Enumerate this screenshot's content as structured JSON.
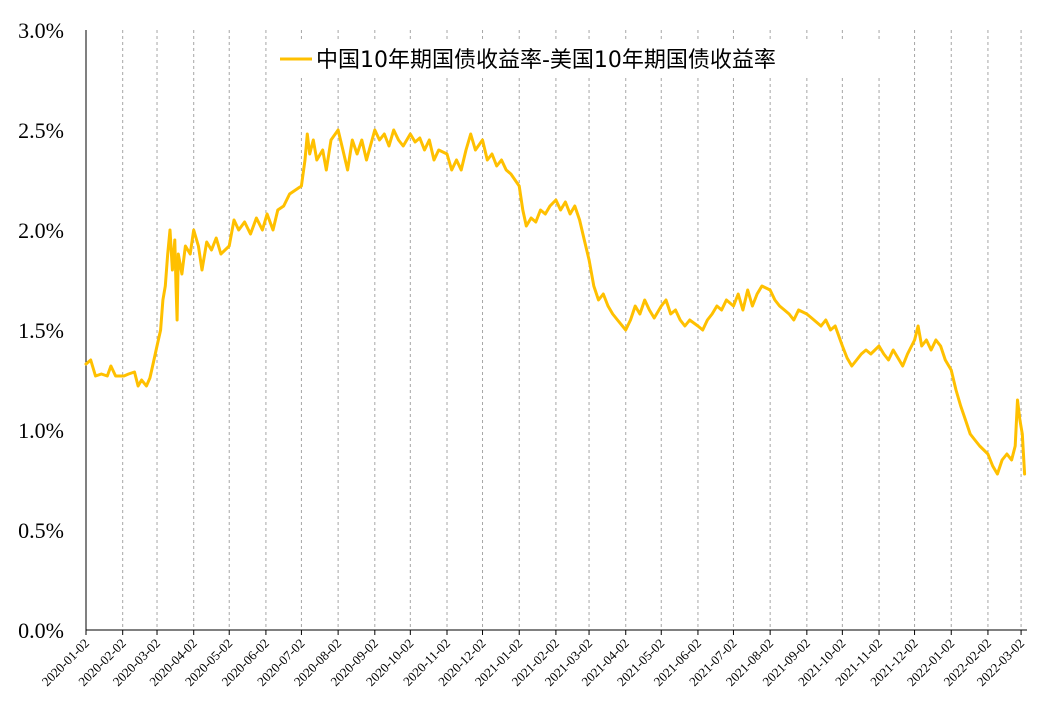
{
  "chart_data": {
    "type": "line",
    "title": "",
    "xlabel": "",
    "ylabel": "",
    "ylim": [
      0,
      3.0
    ],
    "y_unit": "%",
    "grid": "vertical-dashed",
    "legend_position": "top",
    "y_ticks": [
      "0.0%",
      "0.5%",
      "1.0%",
      "1.5%",
      "2.0%",
      "2.5%",
      "3.0%"
    ],
    "x_ticks": [
      "2020-01-02",
      "2020-02-02",
      "2020-03-02",
      "2020-04-02",
      "2020-05-02",
      "2020-06-02",
      "2020-07-02",
      "2020-08-02",
      "2020-09-02",
      "2020-10-02",
      "2020-11-02",
      "2020-12-02",
      "2021-01-02",
      "2021-02-02",
      "2021-03-02",
      "2021-04-02",
      "2021-05-02",
      "2021-06-02",
      "2021-07-02",
      "2021-08-02",
      "2021-09-02",
      "2021-10-02",
      "2021-11-02",
      "2021-12-02",
      "2022-01-02",
      "2022-02-02",
      "2022-03-02"
    ],
    "series": [
      {
        "name": "中国10年期国债收益率-美国10年期国债收益率",
        "color": "#FFC000",
        "points": [
          [
            "2020-01-02",
            1.33
          ],
          [
            "2020-01-06",
            1.35
          ],
          [
            "2020-01-10",
            1.27
          ],
          [
            "2020-01-15",
            1.28
          ],
          [
            "2020-01-20",
            1.27
          ],
          [
            "2020-01-23",
            1.32
          ],
          [
            "2020-01-27",
            1.27
          ],
          [
            "2020-02-03",
            1.27
          ],
          [
            "2020-02-07",
            1.28
          ],
          [
            "2020-02-12",
            1.29
          ],
          [
            "2020-02-15",
            1.22
          ],
          [
            "2020-02-18",
            1.25
          ],
          [
            "2020-02-22",
            1.22
          ],
          [
            "2020-02-25",
            1.26
          ],
          [
            "2020-02-28",
            1.34
          ],
          [
            "2020-03-02",
            1.42
          ],
          [
            "2020-03-05",
            1.5
          ],
          [
            "2020-03-07",
            1.65
          ],
          [
            "2020-03-09",
            1.72
          ],
          [
            "2020-03-11",
            1.88
          ],
          [
            "2020-03-13",
            2.0
          ],
          [
            "2020-03-15",
            1.8
          ],
          [
            "2020-03-17",
            1.95
          ],
          [
            "2020-03-18",
            1.72
          ],
          [
            "2020-03-19",
            1.55
          ],
          [
            "2020-03-20",
            1.88
          ],
          [
            "2020-03-23",
            1.78
          ],
          [
            "2020-03-26",
            1.92
          ],
          [
            "2020-03-30",
            1.88
          ],
          [
            "2020-04-02",
            2.0
          ],
          [
            "2020-04-06",
            1.92
          ],
          [
            "2020-04-09",
            1.8
          ],
          [
            "2020-04-13",
            1.94
          ],
          [
            "2020-04-17",
            1.9
          ],
          [
            "2020-04-21",
            1.96
          ],
          [
            "2020-04-25",
            1.88
          ],
          [
            "2020-05-02",
            1.92
          ],
          [
            "2020-05-06",
            2.05
          ],
          [
            "2020-05-10",
            2.0
          ],
          [
            "2020-05-15",
            2.04
          ],
          [
            "2020-05-20",
            1.98
          ],
          [
            "2020-05-25",
            2.06
          ],
          [
            "2020-05-30",
            2.0
          ],
          [
            "2020-06-03",
            2.08
          ],
          [
            "2020-06-08",
            2.0
          ],
          [
            "2020-06-12",
            2.1
          ],
          [
            "2020-06-17",
            2.12
          ],
          [
            "2020-06-22",
            2.18
          ],
          [
            "2020-06-27",
            2.2
          ],
          [
            "2020-07-02",
            2.22
          ],
          [
            "2020-07-05",
            2.35
          ],
          [
            "2020-07-07",
            2.48
          ],
          [
            "2020-07-09",
            2.38
          ],
          [
            "2020-07-12",
            2.45
          ],
          [
            "2020-07-15",
            2.35
          ],
          [
            "2020-07-20",
            2.4
          ],
          [
            "2020-07-23",
            2.3
          ],
          [
            "2020-07-27",
            2.45
          ],
          [
            "2020-08-02",
            2.5
          ],
          [
            "2020-08-06",
            2.4
          ],
          [
            "2020-08-10",
            2.3
          ],
          [
            "2020-08-14",
            2.45
          ],
          [
            "2020-08-18",
            2.38
          ],
          [
            "2020-08-22",
            2.45
          ],
          [
            "2020-08-26",
            2.35
          ],
          [
            "2020-09-02",
            2.5
          ],
          [
            "2020-09-06",
            2.45
          ],
          [
            "2020-09-10",
            2.48
          ],
          [
            "2020-09-14",
            2.42
          ],
          [
            "2020-09-18",
            2.5
          ],
          [
            "2020-09-22",
            2.45
          ],
          [
            "2020-09-26",
            2.42
          ],
          [
            "2020-10-02",
            2.48
          ],
          [
            "2020-10-06",
            2.44
          ],
          [
            "2020-10-10",
            2.46
          ],
          [
            "2020-10-14",
            2.4
          ],
          [
            "2020-10-18",
            2.45
          ],
          [
            "2020-10-22",
            2.35
          ],
          [
            "2020-10-26",
            2.4
          ],
          [
            "2020-11-02",
            2.38
          ],
          [
            "2020-11-06",
            2.3
          ],
          [
            "2020-11-10",
            2.35
          ],
          [
            "2020-11-14",
            2.3
          ],
          [
            "2020-11-18",
            2.4
          ],
          [
            "2020-11-22",
            2.48
          ],
          [
            "2020-11-26",
            2.4
          ],
          [
            "2020-12-02",
            2.45
          ],
          [
            "2020-12-06",
            2.35
          ],
          [
            "2020-12-10",
            2.38
          ],
          [
            "2020-12-14",
            2.32
          ],
          [
            "2020-12-18",
            2.35
          ],
          [
            "2020-12-22",
            2.3
          ],
          [
            "2020-12-26",
            2.28
          ],
          [
            "2021-01-02",
            2.22
          ],
          [
            "2021-01-05",
            2.1
          ],
          [
            "2021-01-08",
            2.02
          ],
          [
            "2021-01-12",
            2.06
          ],
          [
            "2021-01-16",
            2.04
          ],
          [
            "2021-01-20",
            2.1
          ],
          [
            "2021-01-24",
            2.08
          ],
          [
            "2021-01-28",
            2.12
          ],
          [
            "2021-02-02",
            2.15
          ],
          [
            "2021-02-06",
            2.1
          ],
          [
            "2021-02-10",
            2.14
          ],
          [
            "2021-02-14",
            2.08
          ],
          [
            "2021-02-18",
            2.12
          ],
          [
            "2021-02-22",
            2.05
          ],
          [
            "2021-02-26",
            1.95
          ],
          [
            "2021-03-02",
            1.85
          ],
          [
            "2021-03-06",
            1.72
          ],
          [
            "2021-03-10",
            1.65
          ],
          [
            "2021-03-14",
            1.68
          ],
          [
            "2021-03-18",
            1.62
          ],
          [
            "2021-03-22",
            1.58
          ],
          [
            "2021-03-26",
            1.55
          ],
          [
            "2021-04-02",
            1.5
          ],
          [
            "2021-04-06",
            1.55
          ],
          [
            "2021-04-10",
            1.62
          ],
          [
            "2021-04-14",
            1.58
          ],
          [
            "2021-04-18",
            1.65
          ],
          [
            "2021-04-22",
            1.6
          ],
          [
            "2021-04-26",
            1.56
          ],
          [
            "2021-05-02",
            1.62
          ],
          [
            "2021-05-06",
            1.65
          ],
          [
            "2021-05-10",
            1.58
          ],
          [
            "2021-05-14",
            1.6
          ],
          [
            "2021-05-18",
            1.55
          ],
          [
            "2021-05-22",
            1.52
          ],
          [
            "2021-05-26",
            1.55
          ],
          [
            "2021-06-02",
            1.52
          ],
          [
            "2021-06-06",
            1.5
          ],
          [
            "2021-06-10",
            1.55
          ],
          [
            "2021-06-14",
            1.58
          ],
          [
            "2021-06-18",
            1.62
          ],
          [
            "2021-06-22",
            1.6
          ],
          [
            "2021-06-26",
            1.65
          ],
          [
            "2021-07-02",
            1.62
          ],
          [
            "2021-07-06",
            1.68
          ],
          [
            "2021-07-10",
            1.6
          ],
          [
            "2021-07-14",
            1.7
          ],
          [
            "2021-07-18",
            1.62
          ],
          [
            "2021-07-22",
            1.68
          ],
          [
            "2021-07-26",
            1.72
          ],
          [
            "2021-08-02",
            1.7
          ],
          [
            "2021-08-06",
            1.65
          ],
          [
            "2021-08-10",
            1.62
          ],
          [
            "2021-08-14",
            1.6
          ],
          [
            "2021-08-18",
            1.58
          ],
          [
            "2021-08-22",
            1.55
          ],
          [
            "2021-08-26",
            1.6
          ],
          [
            "2021-09-02",
            1.58
          ],
          [
            "2021-09-06",
            1.56
          ],
          [
            "2021-09-10",
            1.54
          ],
          [
            "2021-09-14",
            1.52
          ],
          [
            "2021-09-18",
            1.55
          ],
          [
            "2021-09-22",
            1.5
          ],
          [
            "2021-09-26",
            1.52
          ],
          [
            "2021-10-02",
            1.42
          ],
          [
            "2021-10-06",
            1.36
          ],
          [
            "2021-10-10",
            1.32
          ],
          [
            "2021-10-14",
            1.35
          ],
          [
            "2021-10-18",
            1.38
          ],
          [
            "2021-10-22",
            1.4
          ],
          [
            "2021-10-26",
            1.38
          ],
          [
            "2021-11-02",
            1.42
          ],
          [
            "2021-11-06",
            1.38
          ],
          [
            "2021-11-10",
            1.35
          ],
          [
            "2021-11-14",
            1.4
          ],
          [
            "2021-11-18",
            1.36
          ],
          [
            "2021-11-22",
            1.32
          ],
          [
            "2021-11-26",
            1.38
          ],
          [
            "2021-12-02",
            1.45
          ],
          [
            "2021-12-05",
            1.52
          ],
          [
            "2021-12-08",
            1.42
          ],
          [
            "2021-12-12",
            1.45
          ],
          [
            "2021-12-16",
            1.4
          ],
          [
            "2021-12-20",
            1.45
          ],
          [
            "2021-12-24",
            1.42
          ],
          [
            "2021-12-28",
            1.35
          ],
          [
            "2022-01-02",
            1.3
          ],
          [
            "2022-01-06",
            1.2
          ],
          [
            "2022-01-10",
            1.12
          ],
          [
            "2022-01-14",
            1.05
          ],
          [
            "2022-01-18",
            0.98
          ],
          [
            "2022-01-22",
            0.95
          ],
          [
            "2022-01-26",
            0.92
          ],
          [
            "2022-02-02",
            0.88
          ],
          [
            "2022-02-06",
            0.82
          ],
          [
            "2022-02-10",
            0.78
          ],
          [
            "2022-02-14",
            0.85
          ],
          [
            "2022-02-18",
            0.88
          ],
          [
            "2022-02-22",
            0.85
          ],
          [
            "2022-02-25",
            0.92
          ],
          [
            "2022-02-27",
            1.15
          ],
          [
            "2022-03-01",
            1.05
          ],
          [
            "2022-03-03",
            0.98
          ],
          [
            "2022-03-05",
            0.78
          ]
        ]
      }
    ]
  }
}
